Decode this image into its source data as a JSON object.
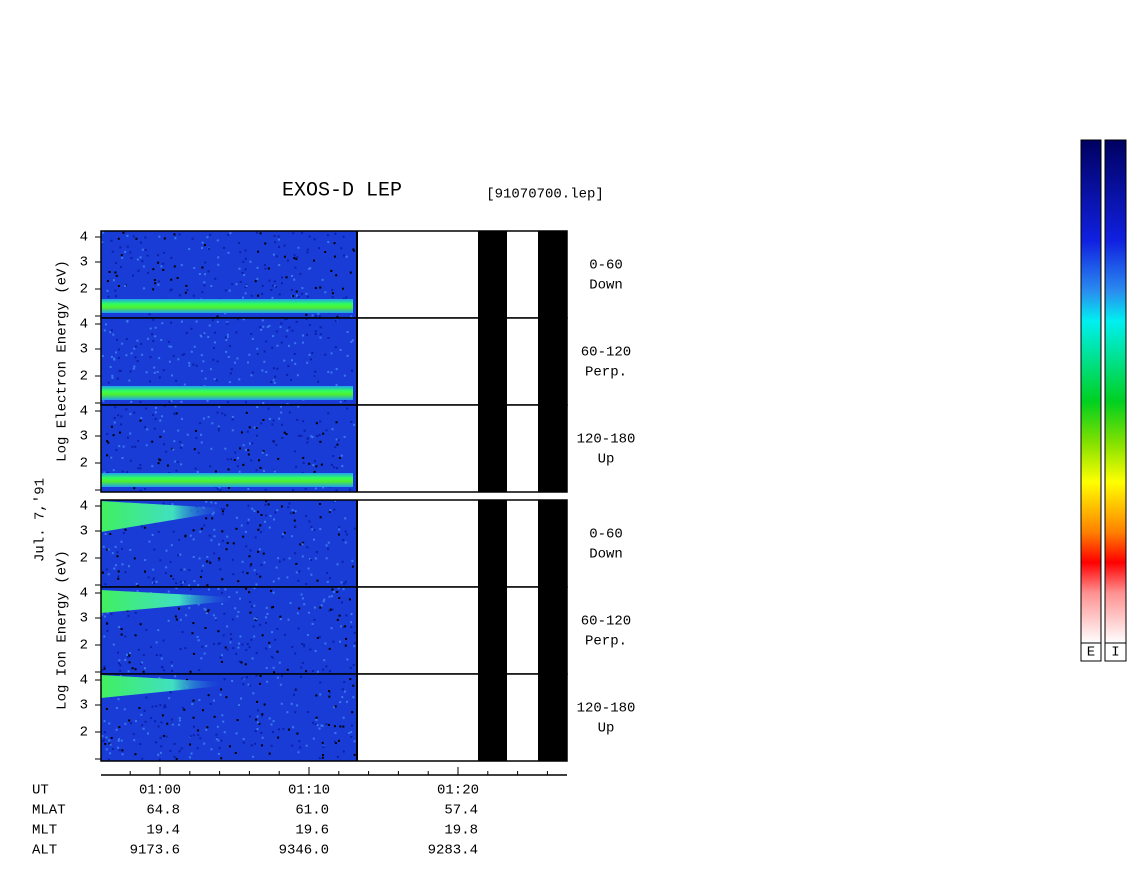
{
  "header": {
    "title": "EXOS-D LEP",
    "file": "[91070700.lep]"
  },
  "date": "Jul. 7,'91",
  "groups": [
    {
      "label": "Log Electron Energy (eV)",
      "panels": [
        {
          "angle": "0-60",
          "direction": "Down",
          "ticks": [
            "4",
            "3",
            "2"
          ]
        },
        {
          "angle": "60-120",
          "direction": "Perp.",
          "ticks": [
            "4",
            "3",
            "2"
          ]
        },
        {
          "angle": "120-180",
          "direction": "Up",
          "ticks": [
            "4",
            "3",
            "2"
          ]
        }
      ]
    },
    {
      "label": "Log Ion Energy (eV)",
      "panels": [
        {
          "angle": "0-60",
          "direction": "Down",
          "ticks": [
            "4",
            "3",
            "2"
          ]
        },
        {
          "angle": "60-120",
          "direction": "Perp.",
          "ticks": [
            "4",
            "3",
            "2"
          ]
        },
        {
          "angle": "120-180",
          "direction": "Up",
          "ticks": [
            "4",
            "3",
            "2"
          ]
        }
      ]
    }
  ],
  "ephemeris": {
    "rows": [
      [
        "UT",
        "01:00",
        "01:10",
        "01:20"
      ],
      [
        "MLAT",
        "64.8",
        "61.0",
        "57.4"
      ],
      [
        "MLT",
        "19.4",
        "19.6",
        "19.8"
      ],
      [
        "ALT",
        "9173.6",
        "9346.0",
        "9283.4"
      ]
    ]
  },
  "colorbars": [
    "E",
    "I"
  ]
}
